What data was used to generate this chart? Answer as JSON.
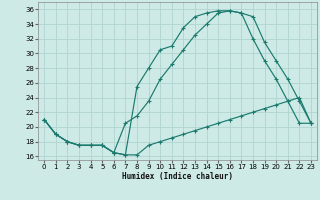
{
  "xlabel": "Humidex (Indice chaleur)",
  "bg_color": "#ceeae6",
  "grid_color": "#b0d4d0",
  "line_color": "#1a7a6e",
  "xlim": [
    -0.5,
    23.5
  ],
  "ylim": [
    15.5,
    37
  ],
  "xticks": [
    0,
    1,
    2,
    3,
    4,
    5,
    6,
    7,
    8,
    9,
    10,
    11,
    12,
    13,
    14,
    15,
    16,
    17,
    18,
    19,
    20,
    21,
    22,
    23
  ],
  "yticks": [
    16,
    18,
    20,
    22,
    24,
    26,
    28,
    30,
    32,
    34,
    36
  ],
  "line1_x": [
    0,
    1,
    2,
    3,
    4,
    5,
    6,
    7,
    8,
    9,
    10,
    11,
    12,
    13,
    14,
    15,
    16,
    17,
    18,
    19,
    20,
    21,
    22,
    23
  ],
  "line1_y": [
    21,
    19,
    18,
    17.5,
    17.5,
    17.5,
    16.5,
    16.2,
    16.2,
    17.5,
    18,
    18.5,
    19,
    19.5,
    20,
    20.5,
    21,
    21.5,
    22,
    22.5,
    23,
    23.5,
    24,
    20.5
  ],
  "line2_x": [
    0,
    1,
    2,
    3,
    4,
    5,
    6,
    7,
    8,
    9,
    10,
    11,
    12,
    13,
    14,
    15,
    16,
    17,
    18,
    19,
    20,
    21,
    22,
    23
  ],
  "line2_y": [
    21,
    19,
    18,
    17.5,
    17.5,
    17.5,
    16.5,
    16.2,
    25.5,
    28,
    30.5,
    31,
    33.5,
    35,
    35.5,
    35.8,
    35.8,
    35.5,
    35.0,
    31.5,
    29,
    26.5,
    23.5,
    20.5
  ],
  "line3_x": [
    0,
    1,
    2,
    3,
    4,
    5,
    6,
    7,
    8,
    9,
    10,
    11,
    12,
    13,
    14,
    15,
    16,
    17,
    18,
    19,
    20,
    21,
    22,
    23
  ],
  "line3_y": [
    21,
    19,
    18,
    17.5,
    17.5,
    17.5,
    16.5,
    20.5,
    21.5,
    23.5,
    26.5,
    28.5,
    30.5,
    32.5,
    34,
    35.5,
    35.8,
    35.5,
    32,
    29,
    26.5,
    23.5,
    20.5,
    20.5
  ]
}
